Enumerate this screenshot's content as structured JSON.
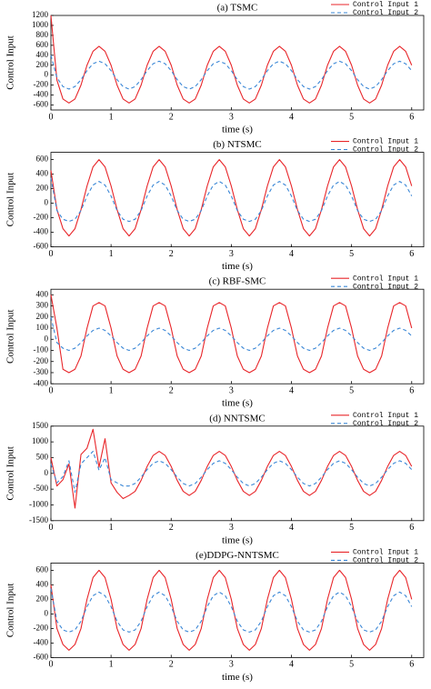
{
  "chart_data": [
    {
      "type": "line",
      "title": "(a) TSMC",
      "x_label": "time (s)",
      "y_label": "Control Input",
      "x": [
        0,
        0.1,
        0.2,
        0.3,
        0.4,
        0.5,
        0.6,
        0.7,
        0.8,
        0.9,
        1,
        1.1,
        1.2,
        1.3,
        1.4,
        1.5,
        1.6,
        1.7,
        1.8,
        1.9,
        2,
        2.1,
        2.2,
        2.3,
        2.4,
        2.5,
        2.6,
        2.7,
        2.8,
        2.9,
        3,
        3.1,
        3.2,
        3.3,
        3.4,
        3.5,
        3.6,
        3.7,
        3.8,
        3.9,
        4,
        4.1,
        4.2,
        4.3,
        4.4,
        4.5,
        4.6,
        4.7,
        4.8,
        4.9,
        5,
        5.1,
        5.2,
        5.3,
        5.4,
        5.5,
        5.6,
        5.7,
        5.8,
        5.9,
        6
      ],
      "xlim": [
        0,
        6.2
      ],
      "xticks": [
        0,
        1,
        2,
        3,
        4,
        5,
        6
      ],
      "ylim": [
        -700,
        1200
      ],
      "yticks": [
        -600,
        -400,
        -200,
        0,
        200,
        400,
        600,
        800,
        1000,
        1200
      ],
      "legend": "upper right",
      "series": [
        {
          "name": "Control Input 1",
          "color": "#e8262a",
          "line_style": "solid",
          "values": [
            1200,
            -100,
            -480,
            -560,
            -480,
            -200,
            200,
            480,
            580,
            480,
            200,
            -200,
            -480,
            -560,
            -480,
            -200,
            200,
            480,
            580,
            480,
            200,
            -200,
            -480,
            -560,
            -480,
            -200,
            200,
            480,
            580,
            480,
            200,
            -200,
            -480,
            -560,
            -480,
            -200,
            200,
            480,
            580,
            480,
            200,
            -200,
            -480,
            -560,
            -480,
            -200,
            200,
            480,
            580,
            480,
            200,
            -200,
            -480,
            -560,
            -480,
            -200,
            200,
            480,
            580,
            480,
            200
          ]
        },
        {
          "name": "Control Input 2",
          "color": "#3a87d6",
          "line_style": "dashed",
          "values": [
            400,
            -50,
            -230,
            -280,
            -230,
            -90,
            90,
            230,
            280,
            230,
            90,
            -90,
            -230,
            -280,
            -230,
            -90,
            90,
            230,
            280,
            230,
            90,
            -90,
            -230,
            -280,
            -230,
            -90,
            90,
            230,
            280,
            230,
            90,
            -90,
            -230,
            -280,
            -230,
            -90,
            90,
            230,
            280,
            230,
            90,
            -90,
            -230,
            -280,
            -230,
            -90,
            90,
            230,
            280,
            230,
            90,
            -90,
            -230,
            -280,
            -230,
            -90,
            90,
            230,
            280,
            230,
            90
          ]
        }
      ]
    },
    {
      "type": "line",
      "title": "(b) NTSMC",
      "x_label": "time (s)",
      "y_label": "Control Input",
      "x": [
        0,
        0.1,
        0.2,
        0.3,
        0.4,
        0.5,
        0.6,
        0.7,
        0.8,
        0.9,
        1,
        1.1,
        1.2,
        1.3,
        1.4,
        1.5,
        1.6,
        1.7,
        1.8,
        1.9,
        2,
        2.1,
        2.2,
        2.3,
        2.4,
        2.5,
        2.6,
        2.7,
        2.8,
        2.9,
        3,
        3.1,
        3.2,
        3.3,
        3.4,
        3.5,
        3.6,
        3.7,
        3.8,
        3.9,
        4,
        4.1,
        4.2,
        4.3,
        4.4,
        4.5,
        4.6,
        4.7,
        4.8,
        4.9,
        5,
        5.1,
        5.2,
        5.3,
        5.4,
        5.5,
        5.6,
        5.7,
        5.8,
        5.9,
        6
      ],
      "xlim": [
        0,
        6.2
      ],
      "xticks": [
        0,
        1,
        2,
        3,
        4,
        5,
        6
      ],
      "ylim": [
        -600,
        700
      ],
      "yticks": [
        -600,
        -400,
        -200,
        0,
        200,
        400,
        600
      ],
      "legend": "upper right",
      "series": [
        {
          "name": "Control Input 1",
          "color": "#e8262a",
          "line_style": "solid",
          "values": [
            450,
            -87,
            -350,
            -450,
            -350,
            -87,
            237,
            500,
            600,
            500,
            237,
            -87,
            -350,
            -450,
            -350,
            -87,
            237,
            500,
            600,
            500,
            237,
            -87,
            -350,
            -450,
            -350,
            -87,
            237,
            500,
            600,
            500,
            237,
            -87,
            -350,
            -450,
            -350,
            -87,
            237,
            500,
            600,
            500,
            237,
            -87,
            -350,
            -450,
            -350,
            -87,
            237,
            500,
            600,
            500,
            237,
            -87,
            -350,
            -450,
            -350,
            -87,
            237,
            500,
            600,
            500,
            237
          ]
        },
        {
          "name": "Control Input 2",
          "color": "#3a87d6",
          "line_style": "dashed",
          "values": [
            350,
            -100,
            -220,
            -250,
            -220,
            -100,
            100,
            250,
            300,
            250,
            100,
            -100,
            -220,
            -250,
            -220,
            -100,
            100,
            250,
            300,
            250,
            100,
            -100,
            -220,
            -250,
            -220,
            -100,
            100,
            250,
            300,
            250,
            100,
            -100,
            -220,
            -250,
            -220,
            -100,
            100,
            250,
            300,
            250,
            100,
            -100,
            -220,
            -250,
            -220,
            -100,
            100,
            250,
            300,
            250,
            100,
            -100,
            -220,
            -250,
            -220,
            -100,
            100,
            250,
            300,
            250,
            100
          ]
        }
      ]
    },
    {
      "type": "line",
      "title": "(c) RBF-SMC",
      "x_label": "time (s)",
      "y_label": "Control Input",
      "x": [
        0,
        0.1,
        0.2,
        0.3,
        0.4,
        0.5,
        0.6,
        0.7,
        0.8,
        0.9,
        1,
        1.1,
        1.2,
        1.3,
        1.4,
        1.5,
        1.6,
        1.7,
        1.8,
        1.9,
        2,
        2.1,
        2.2,
        2.3,
        2.4,
        2.5,
        2.6,
        2.7,
        2.8,
        2.9,
        3,
        3.1,
        3.2,
        3.3,
        3.4,
        3.5,
        3.6,
        3.7,
        3.8,
        3.9,
        4,
        4.1,
        4.2,
        4.3,
        4.4,
        4.5,
        4.6,
        4.7,
        4.8,
        4.9,
        5,
        5.1,
        5.2,
        5.3,
        5.4,
        5.5,
        5.6,
        5.7,
        5.8,
        5.9,
        6
      ],
      "xlim": [
        0,
        6.2
      ],
      "xticks": [
        0,
        1,
        2,
        3,
        4,
        5,
        6
      ],
      "ylim": [
        -400,
        450
      ],
      "yticks": [
        -400,
        -300,
        -200,
        -100,
        0,
        100,
        200,
        300,
        400
      ],
      "legend": "upper right",
      "series": [
        {
          "name": "Control Input 1",
          "color": "#e8262a",
          "line_style": "solid",
          "values": [
            400,
            100,
            -270,
            -300,
            -270,
            -150,
            100,
            300,
            330,
            300,
            100,
            -150,
            -270,
            -300,
            -270,
            -150,
            100,
            300,
            330,
            300,
            100,
            -150,
            -270,
            -300,
            -270,
            -150,
            100,
            300,
            330,
            300,
            100,
            -150,
            -270,
            -300,
            -270,
            -150,
            100,
            300,
            330,
            300,
            100,
            -150,
            -270,
            -300,
            -270,
            -150,
            100,
            300,
            330,
            300,
            100,
            -150,
            -270,
            -300,
            -270,
            -150,
            100,
            300,
            330,
            300,
            100
          ]
        },
        {
          "name": "Control Input 2",
          "color": "#3a87d6",
          "line_style": "dashed",
          "values": [
            200,
            -30,
            -80,
            -100,
            -80,
            -30,
            30,
            80,
            100,
            80,
            30,
            -30,
            -80,
            -100,
            -80,
            -30,
            30,
            80,
            100,
            80,
            30,
            -30,
            -80,
            -100,
            -80,
            -30,
            30,
            80,
            100,
            80,
            30,
            -30,
            -80,
            -100,
            -80,
            -30,
            30,
            80,
            100,
            80,
            30,
            -30,
            -80,
            -100,
            -80,
            -30,
            30,
            80,
            100,
            80,
            30,
            -30,
            -80,
            -100,
            -80,
            -30,
            30,
            80,
            100,
            80,
            30
          ]
        }
      ]
    },
    {
      "type": "line",
      "title": "(d) NNTSMC",
      "x_label": "time (s)",
      "y_label": "Control Input",
      "x": [
        0,
        0.1,
        0.2,
        0.3,
        0.4,
        0.5,
        0.6,
        0.7,
        0.8,
        0.9,
        1,
        1.1,
        1.2,
        1.3,
        1.4,
        1.5,
        1.6,
        1.7,
        1.8,
        1.9,
        2,
        2.1,
        2.2,
        2.3,
        2.4,
        2.5,
        2.6,
        2.7,
        2.8,
        2.9,
        3,
        3.1,
        3.2,
        3.3,
        3.4,
        3.5,
        3.6,
        3.7,
        3.8,
        3.9,
        4,
        4.1,
        4.2,
        4.3,
        4.4,
        4.5,
        4.6,
        4.7,
        4.8,
        4.9,
        5,
        5.1,
        5.2,
        5.3,
        5.4,
        5.5,
        5.6,
        5.7,
        5.8,
        5.9,
        6
      ],
      "xlim": [
        0,
        6.2
      ],
      "xticks": [
        0,
        1,
        2,
        3,
        4,
        5,
        6
      ],
      "ylim": [
        -1500,
        1500
      ],
      "yticks": [
        -1500,
        -1000,
        -500,
        0,
        500,
        1000,
        1500
      ],
      "legend": "upper right",
      "series": [
        {
          "name": "Control Input 1",
          "color": "#e8262a",
          "line_style": "solid",
          "values": [
            500,
            -400,
            -200,
            300,
            -1100,
            600,
            800,
            1400,
            200,
            1100,
            -300,
            -600,
            -800,
            -700,
            -570,
            -220,
            220,
            570,
            700,
            570,
            220,
            -220,
            -570,
            -700,
            -570,
            -220,
            220,
            570,
            700,
            570,
            220,
            -220,
            -570,
            -700,
            -570,
            -220,
            220,
            570,
            700,
            570,
            220,
            -220,
            -570,
            -700,
            -570,
            -220,
            220,
            570,
            700,
            570,
            220,
            -220,
            -570,
            -700,
            -570,
            -220,
            220,
            570,
            700,
            570,
            220
          ]
        },
        {
          "name": "Control Input 2",
          "color": "#3a87d6",
          "line_style": "dashed",
          "values": [
            300,
            -300,
            -100,
            400,
            -600,
            300,
            500,
            700,
            100,
            500,
            -200,
            -300,
            -400,
            -400,
            -320,
            -120,
            120,
            320,
            400,
            320,
            120,
            -120,
            -320,
            -400,
            -320,
            -120,
            120,
            320,
            400,
            320,
            120,
            -120,
            -320,
            -400,
            -320,
            -120,
            120,
            320,
            400,
            320,
            120,
            -120,
            -320,
            -400,
            -320,
            -120,
            120,
            320,
            400,
            320,
            120,
            -120,
            -320,
            -400,
            -320,
            -120,
            120,
            320,
            400,
            320,
            120
          ]
        }
      ]
    },
    {
      "type": "line",
      "title": "(e)DDPG-NNTSMC",
      "x_label": "time (s)",
      "y_label": "Control Input",
      "x": [
        0,
        0.1,
        0.2,
        0.3,
        0.4,
        0.5,
        0.6,
        0.7,
        0.8,
        0.9,
        1,
        1.1,
        1.2,
        1.3,
        1.4,
        1.5,
        1.6,
        1.7,
        1.8,
        1.9,
        2,
        2.1,
        2.2,
        2.3,
        2.4,
        2.5,
        2.6,
        2.7,
        2.8,
        2.9,
        3,
        3.1,
        3.2,
        3.3,
        3.4,
        3.5,
        3.6,
        3.7,
        3.8,
        3.9,
        4,
        4.1,
        4.2,
        4.3,
        4.4,
        4.5,
        4.6,
        4.7,
        4.8,
        4.9,
        5,
        5.1,
        5.2,
        5.3,
        5.4,
        5.5,
        5.6,
        5.7,
        5.8,
        5.9,
        6
      ],
      "xlim": [
        0,
        6.2
      ],
      "xticks": [
        0,
        1,
        2,
        3,
        4,
        5,
        6
      ],
      "ylim": [
        -600,
        700
      ],
      "yticks": [
        -600,
        -400,
        -200,
        0,
        200,
        400,
        600
      ],
      "legend": "upper right",
      "series": [
        {
          "name": "Control Input 1",
          "color": "#e8262a",
          "line_style": "solid",
          "values": [
            400,
            -200,
            -420,
            -500,
            -420,
            -200,
            200,
            500,
            600,
            500,
            200,
            -200,
            -420,
            -500,
            -420,
            -200,
            200,
            500,
            600,
            500,
            200,
            -200,
            -420,
            -500,
            -420,
            -200,
            200,
            500,
            600,
            500,
            200,
            -200,
            -420,
            -500,
            -420,
            -200,
            200,
            500,
            600,
            500,
            200,
            -200,
            -420,
            -500,
            -420,
            -200,
            200,
            500,
            600,
            500,
            200,
            -200,
            -420,
            -500,
            -420,
            -200,
            200,
            500,
            600,
            500,
            200
          ]
        },
        {
          "name": "Control Input 2",
          "color": "#3a87d6",
          "line_style": "dashed",
          "values": [
            350,
            -100,
            -220,
            -250,
            -220,
            -100,
            100,
            250,
            300,
            250,
            100,
            -100,
            -220,
            -250,
            -220,
            -100,
            100,
            250,
            300,
            250,
            100,
            -100,
            -220,
            -250,
            -220,
            -100,
            100,
            250,
            300,
            250,
            100,
            -100,
            -220,
            -250,
            -220,
            -100,
            100,
            250,
            300,
            250,
            100,
            -100,
            -220,
            -250,
            -220,
            -100,
            100,
            250,
            300,
            250,
            100,
            -100,
            -220,
            -250,
            -220,
            -100,
            100,
            250,
            300,
            250,
            100
          ]
        }
      ]
    }
  ]
}
